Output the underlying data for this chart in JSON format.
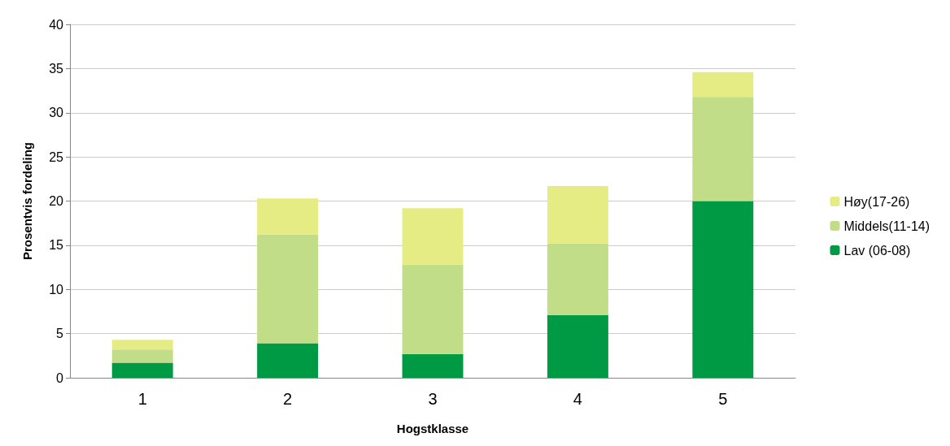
{
  "chart_data": {
    "type": "bar",
    "stacked": true,
    "xlabel": "Hogstklasse",
    "ylabel": "Prosentvis fordeling",
    "categories": [
      "1",
      "2",
      "3",
      "4",
      "5"
    ],
    "series": [
      {
        "name": "Lav (06-08)",
        "color": "#009944",
        "values": [
          1.7,
          3.9,
          2.7,
          7.1,
          20.0
        ]
      },
      {
        "name": "Middels(11-14)",
        "color": "#c2dd88",
        "values": [
          1.5,
          12.3,
          10.1,
          8.1,
          11.8
        ]
      },
      {
        "name": "Høy(17-26)",
        "color": "#e6ec84",
        "values": [
          1.1,
          4.1,
          6.4,
          6.5,
          2.8
        ]
      }
    ],
    "ylim": [
      0,
      40
    ],
    "yticks": [
      0,
      5,
      10,
      15,
      20,
      25,
      30,
      35,
      40
    ],
    "grid": "y",
    "legend": "right"
  }
}
